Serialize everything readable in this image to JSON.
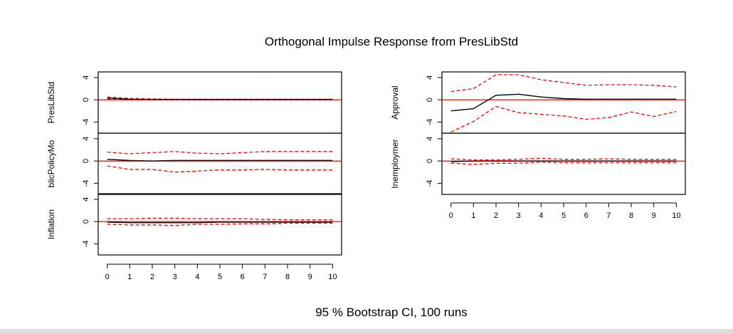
{
  "title": "Orthogonal Impulse Response from PresLibStd",
  "footer": "95 % Bootstrap CI,  100 runs",
  "colors": {
    "response": "#000000",
    "ci": "#ff0000",
    "zero_line": "#ff0000",
    "frame": "#000000"
  },
  "chart_data": {
    "type": "line",
    "x": [
      0,
      1,
      2,
      3,
      4,
      5,
      6,
      7,
      8,
      9,
      10
    ],
    "ylim": [
      -6,
      5
    ],
    "yticks": [
      4,
      0,
      -4
    ],
    "yticks_labels": [
      "4",
      "0",
      "-4"
    ],
    "xticks_labels": [
      "0",
      "1",
      "2",
      "3",
      "4",
      "5",
      "6",
      "7",
      "8",
      "9",
      "10"
    ],
    "grid": false,
    "panels": [
      {
        "ylabel": "PresLibStd",
        "response": [
          0.3,
          0.1,
          0.05,
          0.05,
          0.05,
          0.05,
          0.05,
          0.05,
          0.05,
          0.05,
          0.05
        ],
        "upper": [
          0.5,
          0.25,
          0.15,
          0.1,
          0.1,
          0.1,
          0.1,
          0.1,
          0.1,
          0.1,
          0.1
        ],
        "lower": [
          0.1,
          0.0,
          0.0,
          0.0,
          0.0,
          0.0,
          0.0,
          0.0,
          0.0,
          0.0,
          0.0
        ]
      },
      {
        "ylabel": "blicPolicyMo",
        "response": [
          0.3,
          0.1,
          0.0,
          0.1,
          0.1,
          0.1,
          0.1,
          0.1,
          0.1,
          0.1,
          0.1
        ],
        "upper": [
          1.6,
          1.3,
          1.5,
          1.7,
          1.4,
          1.3,
          1.5,
          1.7,
          1.7,
          1.7,
          1.7
        ],
        "lower": [
          -0.9,
          -1.5,
          -1.5,
          -2.0,
          -1.8,
          -1.6,
          -1.6,
          -1.5,
          -1.6,
          -1.6,
          -1.6
        ]
      },
      {
        "ylabel": "Inflation",
        "response": [
          -0.1,
          -0.2,
          -0.2,
          -0.2,
          -0.2,
          -0.1,
          -0.1,
          -0.1,
          -0.1,
          -0.1,
          -0.1
        ],
        "upper": [
          0.5,
          0.5,
          0.6,
          0.6,
          0.5,
          0.5,
          0.5,
          0.4,
          0.3,
          0.3,
          0.3
        ],
        "lower": [
          -0.5,
          -0.6,
          -0.6,
          -0.7,
          -0.5,
          -0.5,
          -0.4,
          -0.4,
          -0.3,
          -0.3,
          -0.3
        ]
      },
      {
        "ylabel": "Approval",
        "response": [
          -2.0,
          -1.6,
          0.8,
          1.0,
          0.5,
          0.2,
          0.1,
          0.1,
          0.1,
          0.1,
          0.1
        ],
        "upper": [
          1.5,
          2.0,
          4.5,
          4.5,
          3.6,
          3.1,
          2.6,
          2.7,
          2.7,
          2.6,
          2.3
        ],
        "lower": [
          -5.8,
          -3.9,
          -1.2,
          -2.3,
          -2.6,
          -2.9,
          -3.5,
          -3.2,
          -2.2,
          -3.0,
          -2.1
        ]
      },
      {
        "ylabel": "Inemploymer",
        "response": [
          -0.1,
          0.0,
          0.0,
          0.0,
          0.0,
          0.0,
          0.0,
          0.0,
          0.0,
          0.0,
          0.0
        ],
        "upper": [
          0.4,
          0.2,
          0.2,
          0.3,
          0.5,
          0.3,
          0.3,
          0.4,
          0.3,
          0.3,
          0.3
        ],
        "lower": [
          -0.4,
          -0.6,
          -0.4,
          -0.4,
          -0.2,
          -0.3,
          -0.3,
          -0.3,
          -0.3,
          -0.3,
          -0.3
        ]
      }
    ]
  }
}
